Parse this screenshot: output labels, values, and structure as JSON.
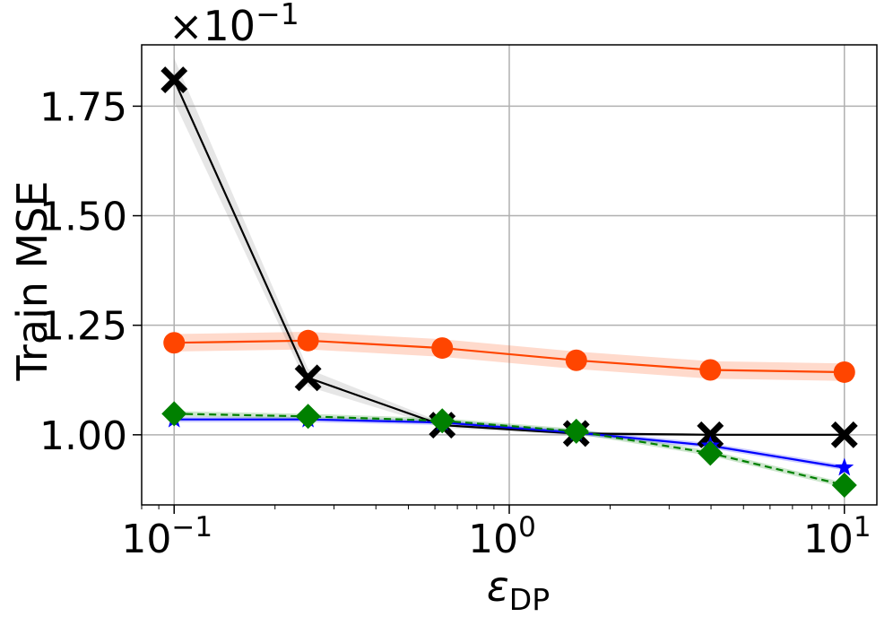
{
  "chart_data": {
    "type": "line",
    "title": "",
    "ylabel": "Train MSE",
    "xlabel_main": "ε",
    "xlabel_sub": "DP",
    "y_multiplier": {
      "base": "×10",
      "exp": "−1"
    },
    "xscale": "log",
    "xlim": [
      0.08,
      12.5
    ],
    "ylim": [
      0.84,
      1.89
    ],
    "grid": true,
    "x_ticks": [
      {
        "value": 0.1,
        "base": "10",
        "exp": "−1"
      },
      {
        "value": 1,
        "base": "10",
        "exp": "0"
      },
      {
        "value": 10,
        "base": "10",
        "exp": "1"
      }
    ],
    "y_ticks": [
      {
        "value": 1.0,
        "label": "1.00"
      },
      {
        "value": 1.25,
        "label": "1.25"
      },
      {
        "value": 1.5,
        "label": "1.50"
      },
      {
        "value": 1.75,
        "label": "1.75"
      }
    ],
    "x": [
      0.1,
      0.251,
      0.631,
      1.585,
      3.981,
      10
    ],
    "series": [
      {
        "color": "#ff4500",
        "marker": "circle",
        "dash": false,
        "values": [
          1.21,
          1.215,
          1.198,
          1.17,
          1.148,
          1.143
        ],
        "band": [
          0.02,
          0.02,
          0.02,
          0.02,
          0.02,
          0.02
        ]
      },
      {
        "color": "#000000",
        "marker": "x",
        "dash": false,
        "values": [
          1.81,
          1.13,
          1.022,
          1.003,
          1.0,
          1.0
        ],
        "band": [
          0.05,
          0.02,
          0.006,
          0.004,
          0.003,
          0.003
        ]
      },
      {
        "color": "#0000ff",
        "marker": "star",
        "dash": false,
        "values": [
          1.035,
          1.035,
          1.028,
          1.005,
          0.975,
          0.925
        ],
        "band": [
          0.006,
          0.006,
          0.006,
          0.006,
          0.006,
          0.006
        ]
      },
      {
        "color": "#008000",
        "marker": "diamond",
        "dash": true,
        "values": [
          1.048,
          1.042,
          1.032,
          1.008,
          0.958,
          0.885
        ],
        "band": [
          0.006,
          0.006,
          0.006,
          0.006,
          0.006,
          0.006
        ]
      }
    ]
  }
}
